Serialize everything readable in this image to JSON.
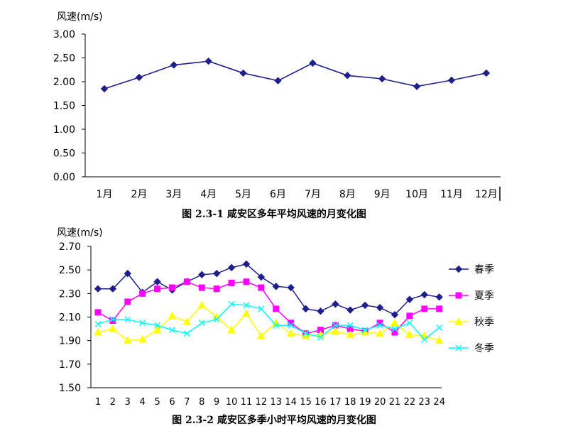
{
  "chart_data": [
    {
      "type": "line",
      "title": "",
      "ylabel": "风速(m/s)",
      "xlabel": "",
      "caption": "图 2.3-1  咸安区多年平均风速的月变化图",
      "categories": [
        "1月",
        "2月",
        "3月",
        "4月",
        "5月",
        "6月",
        "7月",
        "8月",
        "9月",
        "10月",
        "11月",
        "12月"
      ],
      "series": [
        {
          "name": "",
          "color": "#1f1f8c",
          "values": [
            1.85,
            2.09,
            2.35,
            2.43,
            2.18,
            2.02,
            2.39,
            2.13,
            2.06,
            1.9,
            2.03,
            2.18
          ]
        }
      ],
      "ylim": [
        0.0,
        3.0
      ],
      "yticks": [
        "0.00",
        "0.50",
        "1.00",
        "1.50",
        "2.00",
        "2.50",
        "3.00"
      ],
      "grid": false,
      "legend": "none"
    },
    {
      "type": "line",
      "title": "",
      "ylabel": "风速(m/s)",
      "xlabel": "",
      "caption": "图 2.3-2  咸安区多季小时平均风速的月变化图",
      "categories": [
        "1",
        "2",
        "3",
        "4",
        "5",
        "6",
        "7",
        "8",
        "9",
        "10",
        "11",
        "12",
        "13",
        "14",
        "15",
        "16",
        "17",
        "18",
        "19",
        "20",
        "21",
        "22",
        "23",
        "24"
      ],
      "series": [
        {
          "name": "春季",
          "color": "#1f1f8c",
          "marker": "diamond",
          "values": [
            2.34,
            2.34,
            2.47,
            2.31,
            2.4,
            2.33,
            2.4,
            2.46,
            2.47,
            2.52,
            2.55,
            2.44,
            2.36,
            2.35,
            2.17,
            2.15,
            2.21,
            2.16,
            2.2,
            2.18,
            2.12,
            2.25,
            2.29,
            2.27
          ]
        },
        {
          "name": "夏季",
          "color": "#ff00ff",
          "marker": "square",
          "values": [
            2.14,
            2.07,
            2.23,
            2.3,
            2.34,
            2.35,
            2.4,
            2.35,
            2.34,
            2.39,
            2.4,
            2.35,
            2.17,
            2.05,
            1.96,
            1.99,
            2.03,
            2.0,
            1.98,
            2.05,
            1.97,
            2.11,
            2.17,
            2.17
          ]
        },
        {
          "name": "秋季",
          "color": "#ffff00",
          "marker": "triangle",
          "values": [
            1.97,
            2.0,
            1.9,
            1.91,
            1.99,
            2.11,
            2.06,
            2.2,
            2.1,
            1.99,
            2.13,
            1.94,
            2.05,
            1.96,
            1.94,
            1.95,
            1.98,
            1.95,
            1.97,
            1.96,
            2.05,
            1.95,
            1.94,
            1.9
          ]
        },
        {
          "name": "冬季",
          "color": "#00ffff",
          "marker": "x",
          "values": [
            2.04,
            2.08,
            2.08,
            2.05,
            2.03,
            1.99,
            1.96,
            2.05,
            2.08,
            2.21,
            2.2,
            2.17,
            2.03,
            2.03,
            1.96,
            1.93,
            2.03,
            2.03,
            1.99,
            2.03,
            2.0,
            2.05,
            1.91,
            2.01
          ]
        }
      ],
      "ylim": [
        1.5,
        2.7
      ],
      "yticks": [
        "1.50",
        "1.70",
        "1.90",
        "2.10",
        "2.30",
        "2.50",
        "2.70"
      ],
      "grid": false,
      "legend": "right"
    }
  ]
}
